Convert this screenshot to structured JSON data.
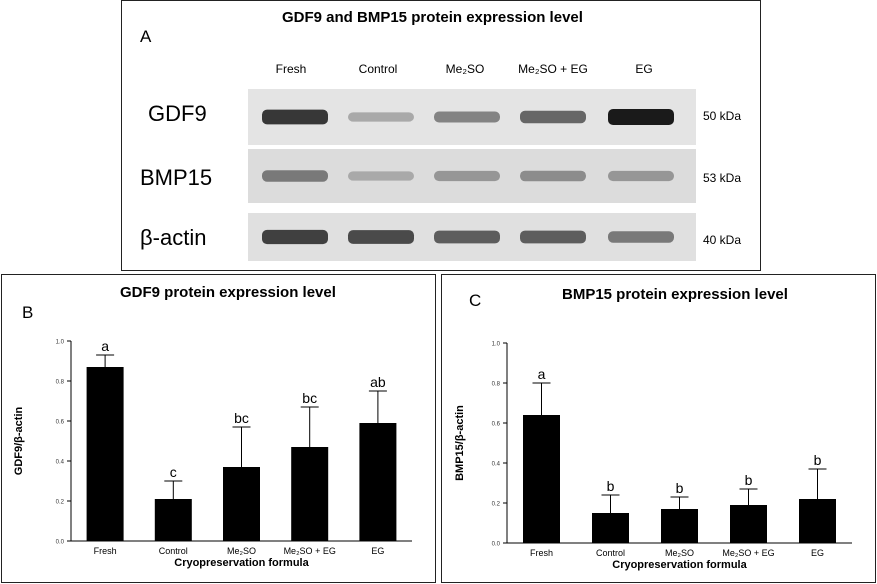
{
  "panelA": {
    "letter": "A",
    "title": "GDF9 and BMP15 protein expression level",
    "lanes": [
      "Fresh",
      "Control",
      "Me₂SO",
      "Me₂SO + EG",
      "EG"
    ],
    "rows": [
      {
        "label": "GDF9",
        "kda": "50 kDa",
        "intensity": [
          0.85,
          0.25,
          0.45,
          0.6,
          1.0
        ]
      },
      {
        "label": "BMP15",
        "kda": "53 kDa",
        "intensity": [
          0.5,
          0.25,
          0.35,
          0.4,
          0.35
        ]
      },
      {
        "label": "β-actin",
        "kda": "40 kDa",
        "intensity": [
          0.8,
          0.75,
          0.65,
          0.65,
          0.5
        ]
      }
    ]
  },
  "chart_data": [
    {
      "type": "bar",
      "letter": "B",
      "title": "GDF9 protein expression level",
      "xlabel": "Cryopreservation formula",
      "ylabel": "GDF9/β-actin",
      "categories": [
        "Fresh",
        "Control",
        "Me₂SO",
        "Me₂SO + EG",
        "EG"
      ],
      "values": [
        0.87,
        0.21,
        0.37,
        0.47,
        0.59
      ],
      "errors": [
        0.06,
        0.09,
        0.2,
        0.2,
        0.16
      ],
      "sig_labels": [
        "a",
        "c",
        "bc",
        "bc",
        "ab"
      ],
      "ylim": [
        0,
        1.0
      ],
      "yticks": [
        "0.0",
        "0.2",
        "0.4",
        "0.6",
        "0.8",
        "1.0"
      ],
      "grid": false
    },
    {
      "type": "bar",
      "letter": "C",
      "title": "BMP15 protein expression level",
      "xlabel": "Cryopreservation formula",
      "ylabel": "BMP15/β-actin",
      "categories": [
        "Fresh",
        "Control",
        "Me₂SO",
        "Me₂SO + EG",
        "EG"
      ],
      "values": [
        0.64,
        0.15,
        0.17,
        0.19,
        0.22
      ],
      "errors": [
        0.16,
        0.09,
        0.06,
        0.08,
        0.15
      ],
      "sig_labels": [
        "a",
        "b",
        "b",
        "b",
        "b"
      ],
      "ylim": [
        0,
        1.0
      ],
      "yticks": [
        "0.0",
        "0.2",
        "0.4",
        "0.6",
        "0.8",
        "1.0"
      ],
      "grid": false
    }
  ]
}
